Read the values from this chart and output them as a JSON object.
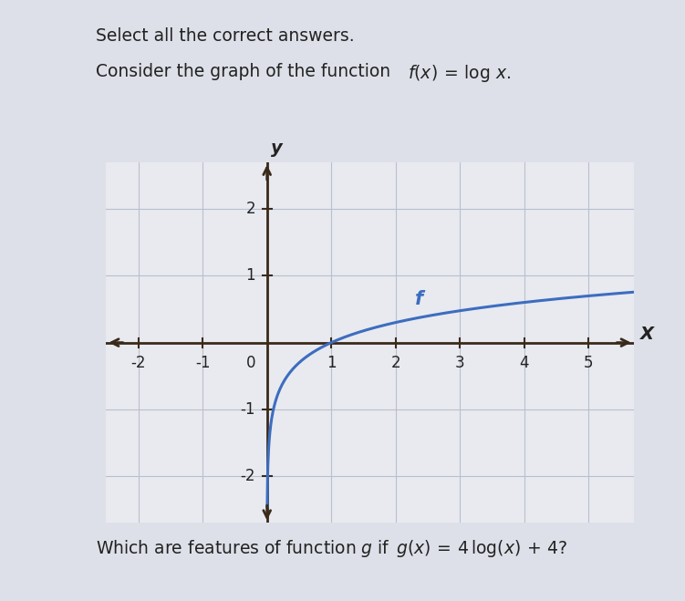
{
  "title_line1": "Select all the correct answers.",
  "title_line2": "Consider the graph of the function",
  "func_math": "f(x) = log x.",
  "question_text": "Which are features of function g if",
  "question_math": "g(x) = 4 log(x) + 4?",
  "xlabel": "X",
  "ylabel": "y",
  "xlim": [
    -2.5,
    5.7
  ],
  "ylim": [
    -2.7,
    2.7
  ],
  "xticks": [
    -2,
    -1,
    1,
    2,
    3,
    4,
    5
  ],
  "yticks": [
    -2,
    -1,
    1,
    2
  ],
  "curve_color": "#3d6dbf",
  "curve_label": "f",
  "axis_color": "#3a2a1a",
  "grid_color": "#b8c0cc",
  "background_color": "#dde0e8",
  "plot_bg_color": "#e8eaf0",
  "text_color": "#222222",
  "title_fontsize": 13.5,
  "tick_fontsize": 12,
  "curve_linewidth": 2.2,
  "zero_label": "0"
}
